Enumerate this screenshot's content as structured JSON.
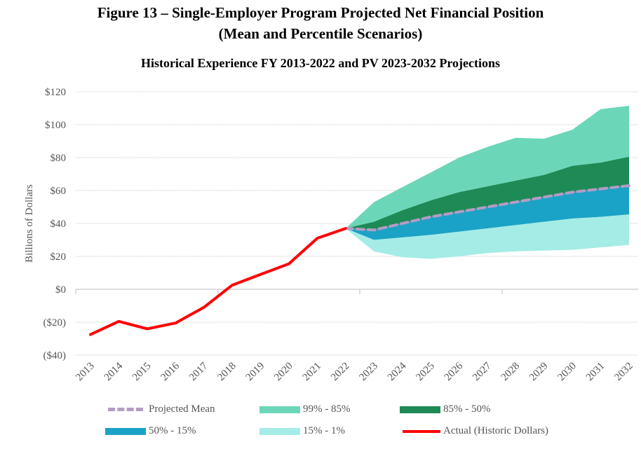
{
  "figure": {
    "title_line1": "Figure 13 – Single-Employer Program Projected Net Financial Position",
    "title_line2": "(Mean and Percentile Scenarios)"
  },
  "colors": {
    "band_99_85": "#6bd7b8",
    "band_85_50": "#1e8a55",
    "band_50_15": "#1aa3c6",
    "band_15_1": "#a5ece6",
    "mean": "#b39cc4",
    "actual": "#ff0000",
    "grid": "#c8c8c8"
  },
  "chart_data": {
    "type": "area",
    "title": "Historical Experience FY 2013-2022 and PV 2023-2032 Projections",
    "ylabel": "Billions of Dollars",
    "xlabel": "",
    "ylim": [
      -40,
      120
    ],
    "yticks": [
      -40,
      -20,
      0,
      20,
      40,
      60,
      80,
      100,
      120
    ],
    "ytick_labels": [
      "($40)",
      "($20)",
      "$0",
      "$20",
      "$40",
      "$60",
      "$80",
      "$100",
      "$120"
    ],
    "x": [
      "2013",
      "2014",
      "2015",
      "2016",
      "2017",
      "2018",
      "2019",
      "2020",
      "2021",
      "2022",
      "2023",
      "2024",
      "2025",
      "2026",
      "2027",
      "2028",
      "2029",
      "2030",
      "2031",
      "2032"
    ],
    "grid": true,
    "legend_position": "bottom",
    "actual": {
      "name": "Actual (Historic Dollars)",
      "x": [
        "2013",
        "2014",
        "2015",
        "2016",
        "2017",
        "2018",
        "2019",
        "2020",
        "2021",
        "2022"
      ],
      "values": [
        -27.5,
        -19.5,
        -24,
        -20.5,
        -11,
        2.5,
        9,
        15.5,
        31,
        37
      ]
    },
    "mean": {
      "name": "Projected Mean",
      "x": [
        "2022",
        "2023",
        "2024",
        "2025",
        "2026",
        "2027",
        "2028",
        "2029",
        "2030",
        "2031",
        "2032"
      ],
      "values": [
        37,
        36,
        40,
        44,
        47,
        50,
        53,
        56,
        59,
        61,
        63
      ]
    },
    "percentiles": {
      "x": [
        "2022",
        "2023",
        "2024",
        "2025",
        "2026",
        "2027",
        "2028",
        "2029",
        "2030",
        "2031",
        "2032"
      ],
      "p99": [
        37,
        53,
        62,
        71,
        80,
        86.5,
        92,
        91.5,
        97,
        109.5,
        111.5
      ],
      "p85": [
        37,
        41,
        48,
        54,
        59,
        62.5,
        66,
        69.5,
        75,
        77,
        80.5
      ],
      "p50": [
        37,
        36,
        40,
        44,
        47,
        50,
        53,
        56,
        59,
        61,
        63
      ],
      "p15": [
        37,
        30,
        31.5,
        33,
        35,
        37,
        39,
        41,
        43,
        44,
        45.5
      ],
      "p1": [
        37,
        23,
        19.5,
        18.5,
        20,
        22,
        23,
        23.5,
        24,
        25.5,
        27
      ]
    },
    "series": [
      {
        "name": "99% - 85%",
        "color": "#6bd7b8"
      },
      {
        "name": "85% - 50%",
        "color": "#1e8a55"
      },
      {
        "name": "50% - 15%",
        "color": "#1aa3c6"
      },
      {
        "name": "15% - 1%",
        "color": "#a5ece6"
      }
    ]
  },
  "legend": {
    "mean_label": "Projected Mean",
    "band1_label": "99% - 85%",
    "band2_label": "85% - 50%",
    "band3_label": "50% - 15%",
    "band4_label": "15% - 1%",
    "actual_label": "Actual (Historic Dollars)"
  }
}
